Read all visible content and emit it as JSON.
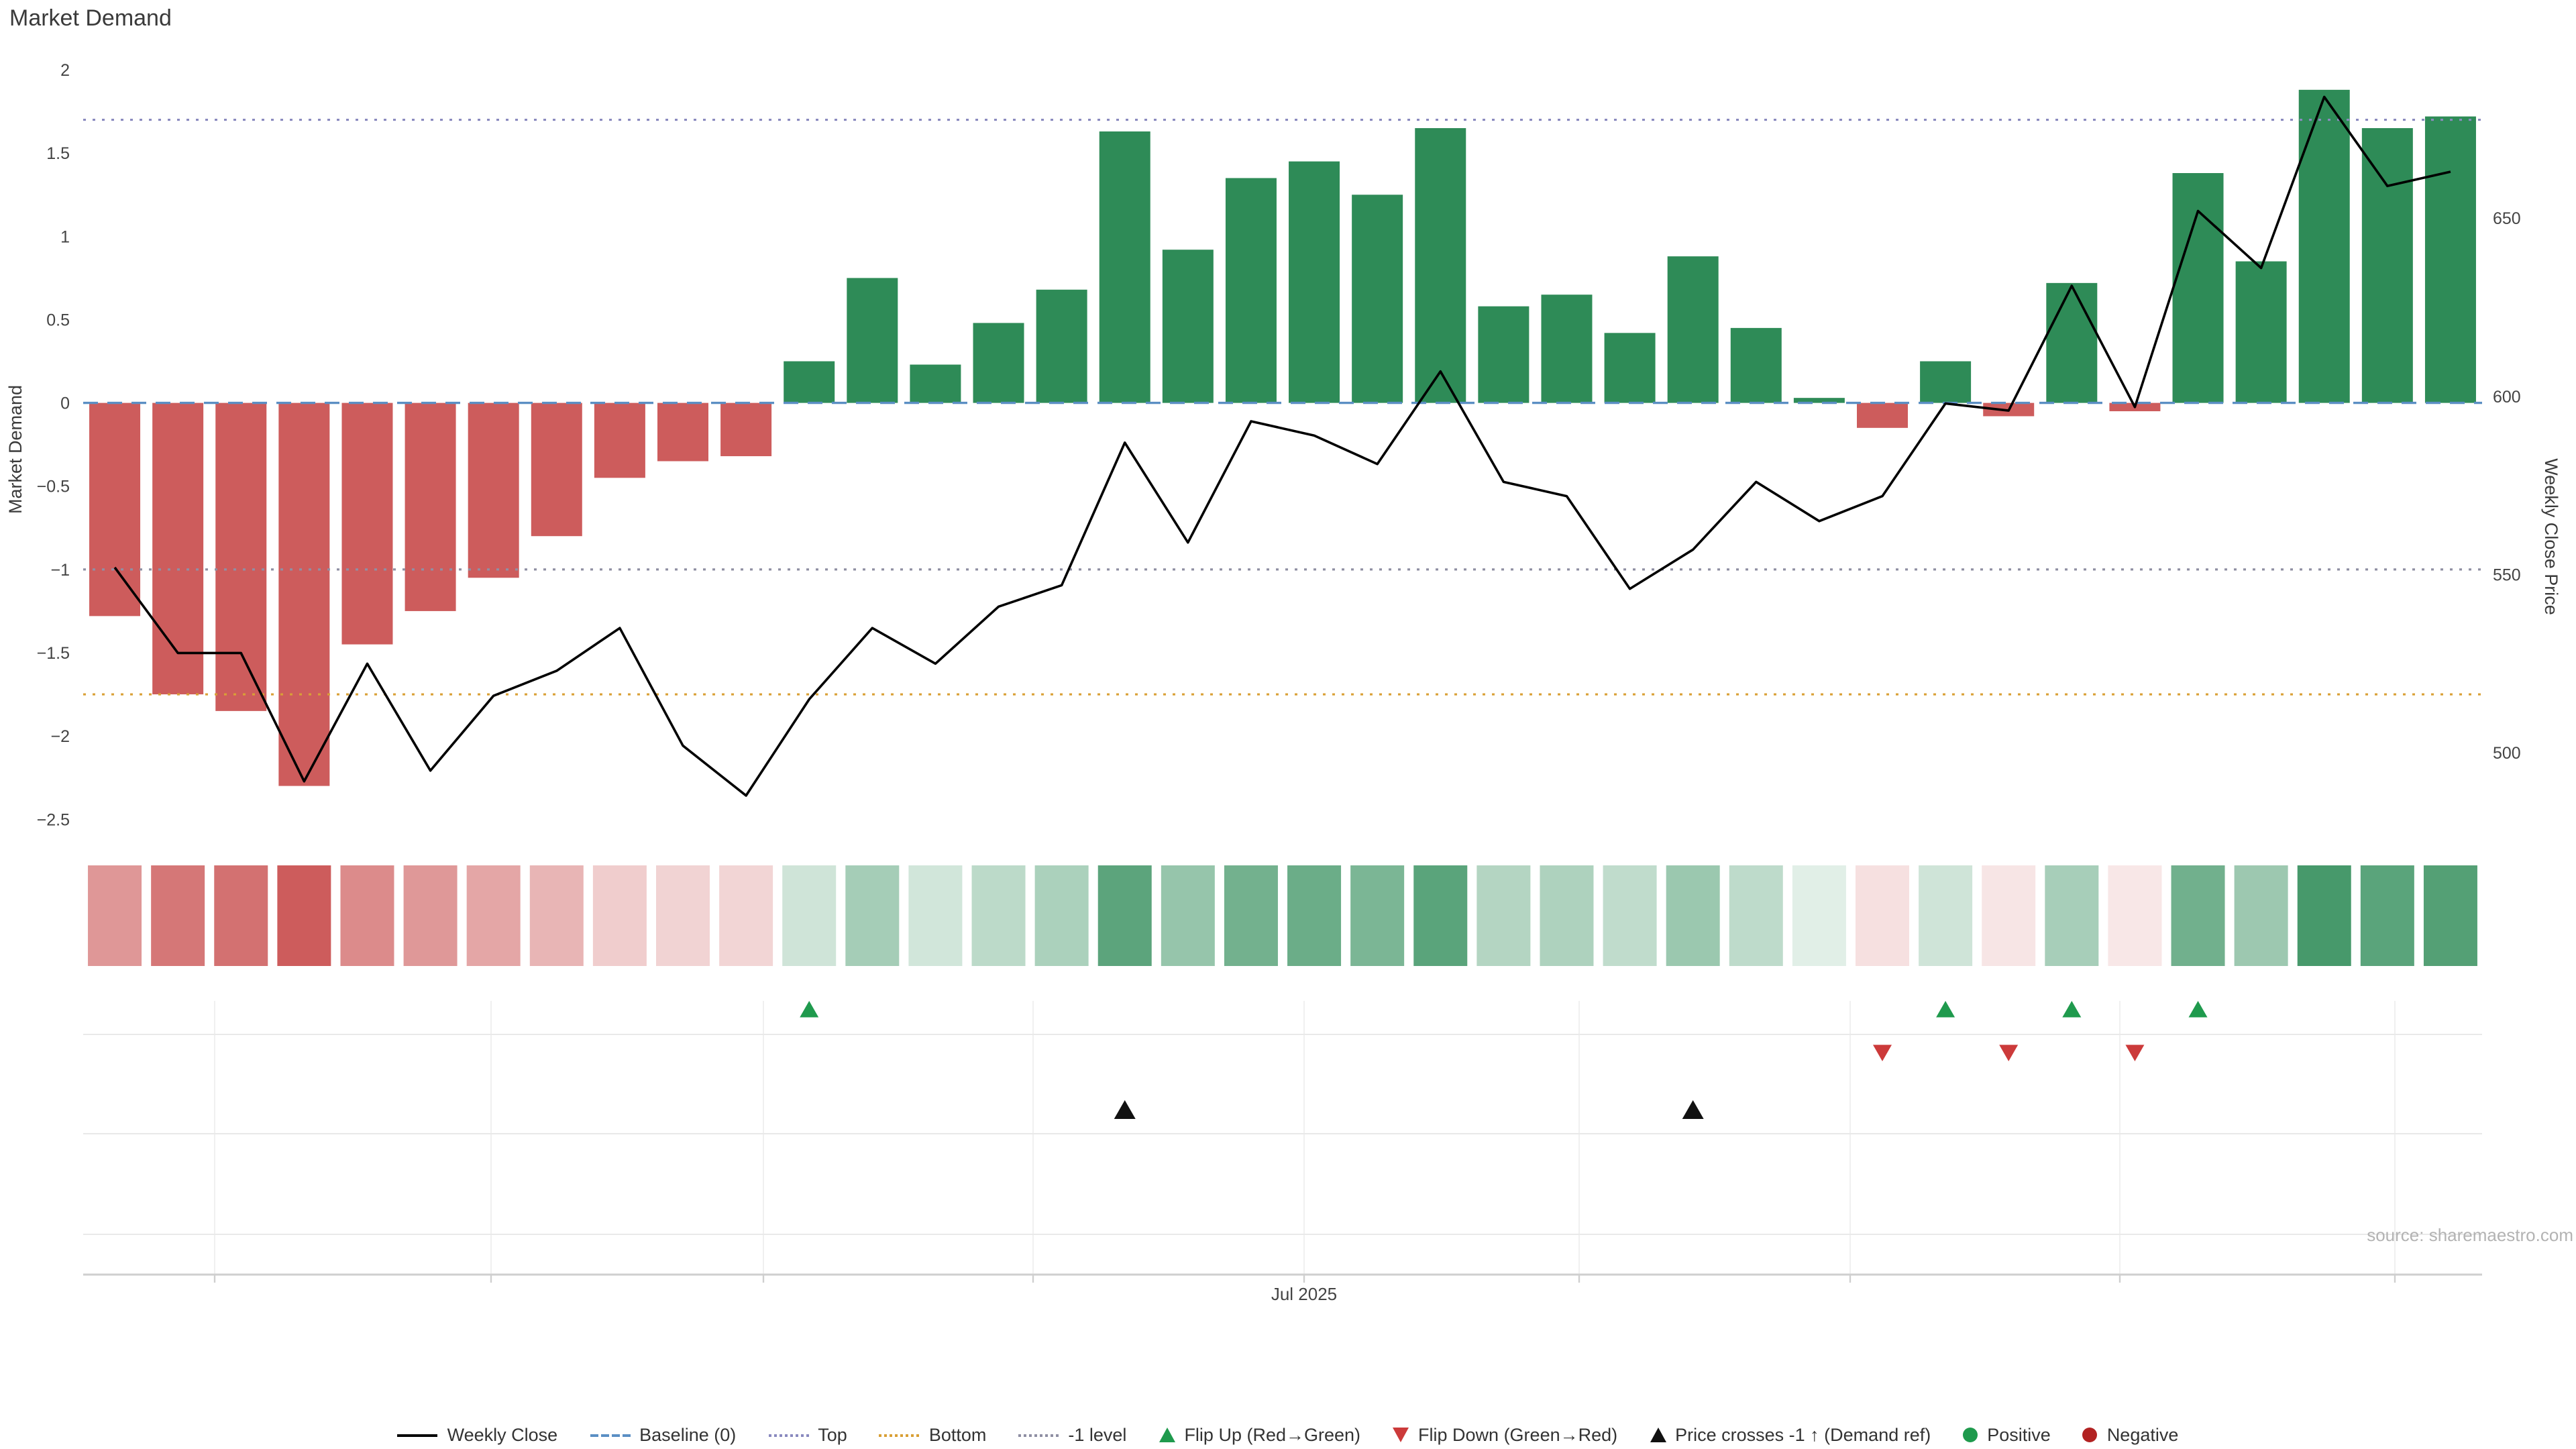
{
  "colors": {
    "positive": "#2e8b57",
    "negative": "#cd5c5c",
    "baseline": "#5b8fc4",
    "top_line": "#8a8abf",
    "bottom_line": "#d9a036",
    "minus1_line": "#8f8fa3",
    "price_line": "#000000",
    "flip_up": "#1f9a4d",
    "flip_down": "#cc3a3a",
    "price_cross": "#111111"
  },
  "chart_data": {
    "type": "bar+line",
    "title": "Market Demand",
    "left_axis": {
      "label": "Market Demand",
      "ticks": [
        2,
        1.5,
        1,
        0.5,
        0,
        -0.5,
        -1,
        -1.5,
        -2,
        -2.5
      ],
      "range": [
        -2.75,
        2.08
      ]
    },
    "right_axis": {
      "label": "Weekly Close Price",
      "ticks": [
        650,
        600,
        550,
        500
      ]
    },
    "x_axis": {
      "visible_tick_label": "Jul 2025"
    },
    "reference_levels": {
      "baseline": 0,
      "top": 1.7,
      "bottom": -1.75,
      "minus_one": -1
    },
    "series": [
      {
        "name": "Market Demand",
        "type": "bar",
        "values": [
          -1.28,
          -1.75,
          -1.85,
          -2.3,
          -1.45,
          -1.25,
          -1.05,
          -0.8,
          -0.45,
          -0.35,
          -0.32,
          0.25,
          0.75,
          0.23,
          0.48,
          0.68,
          1.63,
          0.92,
          1.35,
          1.45,
          1.25,
          1.65,
          0.58,
          0.65,
          0.42,
          0.88,
          0.45,
          0.03,
          -0.15,
          0.25,
          -0.08,
          0.72,
          -0.05,
          1.38,
          0.85,
          1.88,
          1.65,
          1.72
        ]
      },
      {
        "name": "Weekly Close",
        "type": "line",
        "values": [
          552,
          528,
          528,
          492,
          525,
          495,
          516,
          523,
          535,
          502,
          488,
          515,
          535,
          525,
          541,
          547,
          587,
          559,
          593,
          589,
          581,
          607,
          576,
          572,
          546,
          557,
          576,
          565,
          572,
          598,
          596,
          631,
          597,
          652,
          636,
          684,
          659,
          663
        ]
      }
    ],
    "heatmap": {
      "description": "Demand intensity strip, one cell per bar, red negative to green positive",
      "values_ref": "series.0.values"
    },
    "events": {
      "flip_up_indices": [
        11,
        29,
        31,
        33
      ],
      "flip_down_indices": [
        28,
        30,
        32
      ],
      "price_cross_minus1_indices": [
        16,
        25
      ]
    },
    "source_note": "source: sharemaestro.com"
  },
  "legend": {
    "items": [
      {
        "label": "Weekly Close",
        "swatch": "line-solid",
        "color": "#000000"
      },
      {
        "label": "Baseline (0)",
        "swatch": "line-dashed",
        "color": "#5b8fc4"
      },
      {
        "label": "Top",
        "swatch": "line-dotted",
        "color": "#8a8abf"
      },
      {
        "label": "Bottom",
        "swatch": "line-dotted",
        "color": "#d9a036"
      },
      {
        "label": "-1 level",
        "swatch": "line-dotted",
        "color": "#8f8fa3"
      },
      {
        "label": "Flip Up (Red→Green)",
        "swatch": "triangle-up",
        "color": "#1f9a4d"
      },
      {
        "label": "Flip Down (Green→Red)",
        "swatch": "triangle-down",
        "color": "#cc3a3a"
      },
      {
        "label": "Price crosses -1 ↑ (Demand ref)",
        "swatch": "triangle-up",
        "color": "#111111"
      },
      {
        "label": "Positive",
        "swatch": "circle",
        "color": "#1f9a4d"
      },
      {
        "label": "Negative",
        "swatch": "circle",
        "color": "#b22222"
      }
    ]
  }
}
